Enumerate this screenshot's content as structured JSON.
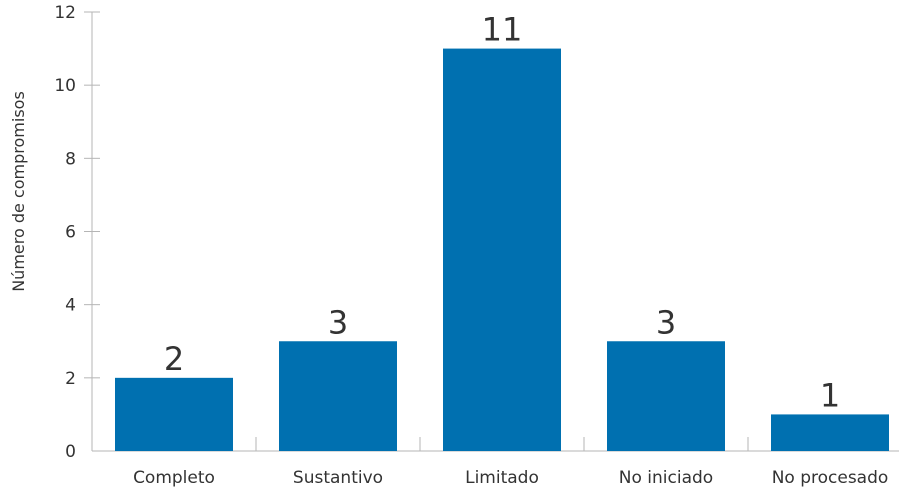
{
  "chart_data": {
    "type": "bar",
    "title": "",
    "xlabel": "",
    "ylabel": "Número de compromisos",
    "categories": [
      "Completo",
      "Sustantivo",
      "Limitado",
      "No iniciado",
      "No procesado"
    ],
    "values": [
      2,
      3,
      11,
      3,
      1
    ],
    "value_labels": [
      "2",
      "3",
      "11",
      "3",
      "1"
    ],
    "ylim": [
      0,
      12
    ],
    "yticks": [
      0,
      2,
      4,
      6,
      8,
      10,
      12
    ],
    "ytick_labels": [
      "0",
      "2",
      "4",
      "6",
      "8",
      "10",
      "12"
    ],
    "grid": false,
    "colors": {
      "bar": "#0070B0",
      "axis": "#b5b5b5",
      "text": "#333333"
    }
  }
}
